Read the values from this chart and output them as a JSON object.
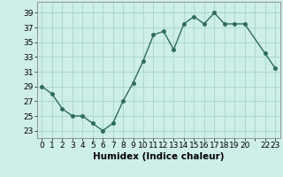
{
  "x": [
    0,
    1,
    2,
    3,
    4,
    5,
    6,
    7,
    8,
    9,
    10,
    11,
    12,
    13,
    14,
    15,
    16,
    17,
    18,
    19,
    20,
    22,
    23
  ],
  "y": [
    29,
    28,
    26,
    25,
    25,
    24,
    23,
    24,
    27,
    29.5,
    32.5,
    36,
    36.5,
    34,
    37.5,
    38.5,
    37.5,
    39,
    37.5,
    37.5,
    37.5,
    33.5,
    31.5
  ],
  "line_color": "#2e6b5e",
  "marker": "o",
  "markersize": 2.5,
  "linewidth": 1.0,
  "bg_color": "#ceeee8",
  "grid_color": "#aad8d0",
  "xlabel": "Humidex (Indice chaleur)",
  "xlabel_fontsize": 7.5,
  "tick_fontsize": 6.5,
  "yticks": [
    23,
    25,
    27,
    29,
    31,
    33,
    35,
    37,
    39
  ],
  "ylim": [
    22.0,
    40.5
  ],
  "xlim": [
    -0.5,
    23.5
  ]
}
